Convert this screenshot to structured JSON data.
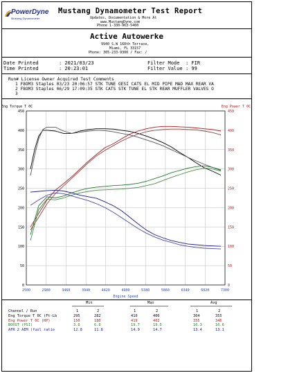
{
  "header": {
    "title": "Mustang Dynamometer Test Report",
    "sub1": "Updates, Documentation & More At",
    "sub2": "www.MustangDyne.com",
    "sub3": "Phone 1-330-963-5400",
    "logo_text": "PowerDyne",
    "logo_sub": "Mustang Dynamometer"
  },
  "shop": {
    "name": "Active Autowerke",
    "address": "9940 S.W 168th Terrace,",
    "city": "Miami, FL  33157",
    "phone": "Phone: 305-233-9300  /  Fax:  /"
  },
  "info": {
    "date_printed_label": "Date Printed",
    "date_printed": ": 2021/03/23",
    "time_printed_label": "Time Printed",
    "time_printed": ": 20:23:01",
    "filter_mode_label": "Filter Mode",
    "filter_mode": ": FIR",
    "filter_value_label": "Filter Value",
    "filter_value": ": 99"
  },
  "runs": {
    "header": "Run# License   Owner    Acquired        Test Comments",
    "rows": [
      "1 F8OM3  Staples 03/23 20:06:57  STK TUNE GESI CATS EL MID PIPE MAD MAX REAR VA",
      "2 F8OM3  Staples 06/29 17:09:35  STK CATS STK TUNE EL STK REAR MUFFLER VALVES O"
    ],
    "row3": "3"
  },
  "chart_data": {
    "type": "line",
    "ylabel": "Eng Torque T 0C",
    "y2label": "Eng Power T 0C",
    "xlabel": "Engine Speed",
    "x_ticks": [
      "2500",
      "2980",
      "3460",
      "3940",
      "4420",
      "4900",
      "5380",
      "5860",
      "6340",
      "6820",
      "7300"
    ],
    "y_ticks": [
      "0",
      "50",
      "100",
      "150",
      "200",
      "250",
      "300",
      "350",
      "400",
      "450"
    ],
    "y2_ticks": [
      "0",
      "50",
      "100",
      "150",
      "200",
      "250",
      "300",
      "350",
      "400",
      "450"
    ],
    "xlim": [
      2500,
      7300
    ],
    "ylim": [
      0,
      450
    ],
    "series": [
      {
        "key": "tq1",
        "color": "#000000",
        "x": [
          2600,
          2700,
          2800,
          2900,
          3000,
          3200,
          3400,
          3600,
          3800,
          4000,
          4200,
          4400,
          4600,
          4800,
          5000,
          5200,
          5400,
          5600,
          5800,
          6000,
          6200,
          6400,
          6600,
          6800,
          7000,
          7200
        ],
        "y": [
          300,
          350,
          385,
          400,
          400,
          398,
          392,
          392,
          398,
          402,
          404,
          404,
          403,
          400,
          397,
          392,
          385,
          377,
          368,
          357,
          343,
          330,
          316,
          303,
          294,
          284
        ]
      },
      {
        "key": "tq2",
        "color": "#555555",
        "x": [
          2600,
          2700,
          2800,
          2900,
          3000,
          3200,
          3400,
          3600,
          3800,
          4000,
          4200,
          4400,
          4600,
          4800,
          5000,
          5200,
          5400,
          5600,
          5800,
          6000,
          6200,
          6400,
          6600,
          6800,
          7000,
          7200
        ],
        "y": [
          283,
          335,
          378,
          402,
          408,
          408,
          398,
          392,
          395,
          398,
          400,
          399,
          396,
          392,
          388,
          382,
          375,
          368,
          360,
          350,
          340,
          330,
          321,
          312,
          304,
          296
        ]
      },
      {
        "key": "hp1",
        "color": "#b01818",
        "x": [
          2600,
          2800,
          3000,
          3200,
          3400,
          3600,
          3800,
          4000,
          4200,
          4400,
          4600,
          4800,
          5000,
          5200,
          5400,
          5600,
          5800,
          6000,
          6200,
          6400,
          6600,
          6800,
          7000,
          7200
        ],
        "y": [
          150,
          185,
          220,
          245,
          262,
          280,
          300,
          320,
          338,
          355,
          365,
          378,
          390,
          398,
          404,
          408,
          410,
          410,
          409,
          408,
          406,
          404,
          402,
          398
        ]
      },
      {
        "key": "hp2",
        "color": "#7a4a4a",
        "x": [
          2600,
          2800,
          3000,
          3200,
          3400,
          3600,
          3800,
          4000,
          4200,
          4400,
          4600,
          4800,
          5000,
          5200,
          5400,
          5600,
          5800,
          6000,
          6200,
          6400,
          6600,
          6800,
          7000,
          7200
        ],
        "y": [
          142,
          175,
          210,
          236,
          256,
          276,
          296,
          316,
          334,
          348,
          360,
          372,
          382,
          390,
          396,
          400,
          402,
          403,
          403,
          402,
          401,
          398,
          394,
          388
        ]
      },
      {
        "key": "boost1",
        "color": "#1e7d2a",
        "x": [
          2600,
          2800,
          3000,
          3200,
          3400,
          3600,
          3800,
          4000,
          4200,
          4400,
          4600,
          4800,
          5000,
          5200,
          5400,
          5600,
          5800,
          6000,
          6200,
          6400,
          6600,
          6800,
          7000,
          7200
        ],
        "y": [
          130,
          205,
          228,
          225,
          230,
          238,
          245,
          250,
          253,
          255,
          257,
          258,
          260,
          263,
          268,
          275,
          282,
          290,
          296,
          302,
          306,
          308,
          304,
          298
        ]
      },
      {
        "key": "boost2",
        "color": "#4a8a4a",
        "x": [
          2600,
          2800,
          3000,
          3200,
          3400,
          3600,
          3800,
          4000,
          4200,
          4400,
          4600,
          4800,
          5000,
          5200,
          5400,
          5600,
          5800,
          6000,
          6200,
          6400,
          6600,
          6800,
          7000,
          7200
        ],
        "y": [
          115,
          195,
          222,
          220,
          225,
          232,
          238,
          242,
          245,
          246,
          247,
          248,
          250,
          252,
          257,
          262,
          270,
          278,
          285,
          292,
          298,
          302,
          300,
          294
        ]
      },
      {
        "key": "afr1",
        "color": "#1a1a8c",
        "x": [
          2600,
          2800,
          3000,
          3200,
          3400,
          3600,
          3800,
          4000,
          4200,
          4400,
          4600,
          4800,
          5000,
          5200,
          5400,
          5600,
          5800,
          6000,
          6200,
          6400,
          6600,
          6800,
          7000,
          7200
        ],
        "y": [
          240,
          242,
          244,
          245,
          243,
          238,
          232,
          228,
          224,
          215,
          205,
          192,
          175,
          158,
          142,
          130,
          122,
          115,
          110,
          106,
          104,
          102,
          101,
          100
        ]
      },
      {
        "key": "afr2",
        "color": "#4a4aa8",
        "x": [
          2600,
          2800,
          3000,
          3200,
          3400,
          3600,
          3800,
          4000,
          4200,
          4400,
          4600,
          4800,
          5000,
          5200,
          5400,
          5600,
          5800,
          6000,
          6200,
          6400,
          6600,
          6800,
          7000,
          7200
        ],
        "y": [
          206,
          220,
          232,
          238,
          236,
          230,
          224,
          218,
          210,
          200,
          188,
          174,
          160,
          146,
          134,
          124,
          116,
          110,
          104,
          100,
          97,
          95,
          94,
          93
        ]
      }
    ]
  },
  "stats": {
    "min_label": "Min",
    "max_label": "Max",
    "avg_label": "Avg",
    "channel_header": "Channel / Run",
    "col_nums": [
      "1",
      "2",
      "1",
      "2",
      "1",
      "2"
    ],
    "rows": [
      {
        "name": "Eng Torque T 0C (Ft-Lb",
        "vals": [
          "295",
          "282",
          "410",
          "406",
          "364",
          "355"
        ],
        "color": "#000000"
      },
      {
        "name": "Eng Power T 0C (HP)",
        "vals": [
          "150",
          "180",
          "419",
          "402",
          "355",
          "346"
        ],
        "color": "#b01818"
      },
      {
        "name": "BOOST (PSI)",
        "vals": [
          "3.8",
          "6.8",
          "19.7",
          "19.5",
          "16.3",
          "16.6"
        ],
        "color": "#1e7d2a"
      },
      {
        "name": "AFR 2  AEM (fuel ratio",
        "vals": [
          "12.8",
          "11.8",
          "14.9",
          "14.7",
          "13.4",
          "13.1"
        ],
        "color": "#1a1a8c"
      }
    ]
  },
  "colors": {
    "grid": "#b8b8b8",
    "tick_blue": "#2a4cb8",
    "tick_red": "#b01818"
  }
}
